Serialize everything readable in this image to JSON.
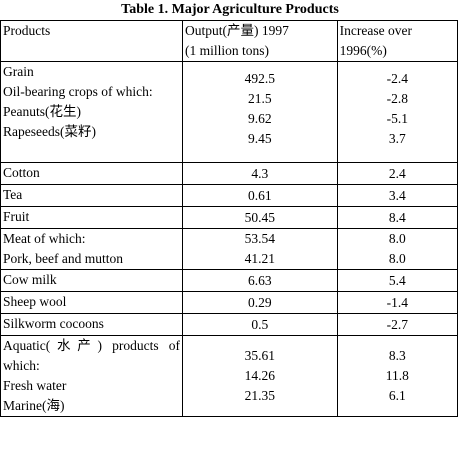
{
  "title": "Table 1.   Major Agriculture Products",
  "headers": {
    "products": "Products",
    "output_line1": "Output(产量) 1997",
    "output_line2": "(1 million tons)",
    "increase_line1": "Increase over",
    "increase_line2": "1996(%)"
  },
  "rows": [
    {
      "labels": [
        "Grain",
        "Oil-bearing crops of which:",
        "Peanuts(花生)",
        "Rapeseeds(菜籽)"
      ],
      "outputs": [
        "492.5",
        "21.5",
        "9.62",
        "9.45"
      ],
      "increases": [
        "-2.4",
        "-2.8",
        "-5.1",
        "3.7"
      ]
    },
    {
      "labels": [
        "Cotton"
      ],
      "outputs": [
        "4.3"
      ],
      "increases": [
        "2.4"
      ]
    },
    {
      "labels": [
        "Tea"
      ],
      "outputs": [
        "0.61"
      ],
      "increases": [
        "3.4"
      ]
    },
    {
      "labels": [
        "Fruit"
      ],
      "outputs": [
        "50.45"
      ],
      "increases": [
        "8.4"
      ]
    },
    {
      "labels": [
        "Meat of which:",
        "Pork, beef and mutton"
      ],
      "outputs": [
        "53.54",
        "41.21"
      ],
      "increases": [
        "8.0",
        "8.0"
      ]
    },
    {
      "labels": [
        "Cow milk"
      ],
      "outputs": [
        "6.63"
      ],
      "increases": [
        "5.4"
      ]
    },
    {
      "labels": [
        "Sheep wool"
      ],
      "outputs": [
        "0.29"
      ],
      "increases": [
        "-1.4"
      ]
    },
    {
      "labels": [
        "Silkworm cocoons"
      ],
      "outputs": [
        "0.5"
      ],
      "increases": [
        "-2.7"
      ]
    },
    {
      "labels": [
        "Aquatic(水产) products of",
        "which:",
        "Fresh water",
        "Marine(海)"
      ],
      "outputs": [
        "35.61",
        "14.26",
        "21.35"
      ],
      "increases": [
        "8.3",
        "11.8",
        "6.1"
      ]
    }
  ]
}
